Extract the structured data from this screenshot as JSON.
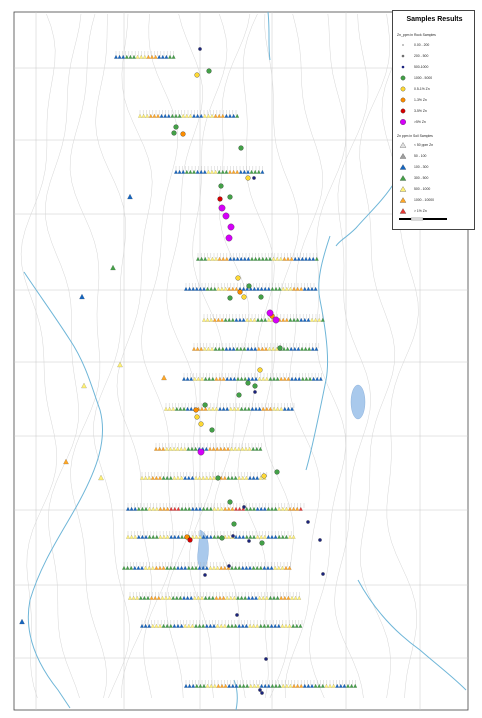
{
  "legend": {
    "title": "Samples Results",
    "rock_heading": "Zn_ppm in Rock Samples",
    "rock_classes": [
      {
        "label": "0.00 - 200",
        "shape": "dot-small",
        "color": "#9a9a9a"
      },
      {
        "label": "200 - 500",
        "shape": "dot",
        "color": "#6f6f6f"
      },
      {
        "label": "500-1000",
        "shape": "dot",
        "color": "#1a237e"
      },
      {
        "label": "1000 - 5000",
        "shape": "circle",
        "color": "#43a047"
      },
      {
        "label": "0.5-1% Zn",
        "shape": "circle",
        "color": "#fdd835"
      },
      {
        "label": "1-3% Zn",
        "shape": "circle",
        "color": "#fb8c00"
      },
      {
        "label": "3-5% Zn",
        "shape": "circle",
        "color": "#d50000"
      },
      {
        "label": ">5% Zn",
        "shape": "circle-large",
        "color": "#d500f9"
      }
    ],
    "soil_heading": "Zn ppm in Soil Samples",
    "soil_classes": [
      {
        "label": "< 50 ppm Zn",
        "shape": "triangle",
        "color": "#e0e0e0"
      },
      {
        "label": "50 - 100",
        "shape": "triangle",
        "color": "#9e9e9e"
      },
      {
        "label": "100 - 300",
        "shape": "triangle",
        "color": "#1565c0"
      },
      {
        "label": "300 - 500",
        "shape": "triangle",
        "color": "#43a047"
      },
      {
        "label": "500 - 1000",
        "shape": "triangle",
        "color": "#fff176"
      },
      {
        "label": "1000 - 10000",
        "shape": "triangle",
        "color": "#ffa726"
      },
      {
        "label": "> 1% Zn",
        "shape": "triangle",
        "color": "#e53935"
      }
    ]
  },
  "colors": {
    "stream": "#6fb6d8",
    "contour": "#d6d6d6",
    "grid": "#c8c8c8",
    "lake": "#a9c9ec",
    "frame": "#444444"
  },
  "soil_lines": [
    {
      "pattern": [
        "#1565c0",
        "#43a047",
        "#fff176",
        "#ffa726",
        "#1565c0",
        "#43a047",
        "#fff176"
      ]
    },
    {
      "pattern": [
        "#fff176",
        "#ffa726",
        "#1565c0",
        "#43a047",
        "#fff176",
        "#1565c0"
      ]
    },
    {
      "pattern": [
        "#1565c0",
        "#43a047",
        "#1565c0",
        "#fff176",
        "#43a047",
        "#ffa726"
      ]
    },
    {
      "pattern": [
        "#43a047",
        "#fff176",
        "#ffa726",
        "#1565c0",
        "#1565c0",
        "#43a047"
      ]
    },
    {
      "pattern": [
        "#1565c0",
        "#1565c0",
        "#43a047",
        "#fff176",
        "#ffa726",
        "#1565c0"
      ]
    },
    {
      "pattern": [
        "#fff176",
        "#ffa726",
        "#43a047",
        "#1565c0",
        "#fff176",
        "#43a047"
      ]
    },
    {
      "pattern": [
        "#ffa726",
        "#fff176",
        "#43a047",
        "#1565c0",
        "#43a047",
        "#1565c0"
      ]
    },
    {
      "pattern": [
        "#1565c0",
        "#fff176",
        "#43a047",
        "#ffa726",
        "#1565c0",
        "#43a047"
      ]
    },
    {
      "pattern": [
        "#fff176",
        "#43a047",
        "#1565c0",
        "#ffa726",
        "#fff176",
        "#1565c0"
      ]
    },
    {
      "pattern": [
        "#ffa726",
        "#fff176",
        "#fff176",
        "#43a047",
        "#1565c0",
        "#ffa726"
      ]
    },
    {
      "pattern": [
        "#fff176",
        "#ffa726",
        "#43a047",
        "#fff176",
        "#1565c0",
        "#fff176"
      ]
    },
    {
      "pattern": [
        "#1565c0",
        "#43a047",
        "#fff176",
        "#ffa726",
        "#e53935",
        "#43a047"
      ]
    },
    {
      "pattern": [
        "#fff176",
        "#1565c0",
        "#43a047",
        "#fff176",
        "#1565c0",
        "#43a047"
      ]
    },
    {
      "pattern": [
        "#43a047",
        "#1565c0",
        "#fff176",
        "#ffa726",
        "#43a047",
        "#1565c0"
      ]
    },
    {
      "pattern": [
        "#fff176",
        "#43a047",
        "#ffa726",
        "#fff176",
        "#43a047",
        "#1565c0"
      ]
    },
    {
      "pattern": [
        "#1565c0",
        "#fff176",
        "#43a047",
        "#1565c0",
        "#fff176",
        "#43a047"
      ]
    }
  ],
  "rock_points": [
    {
      "c": "#1a237e"
    },
    {
      "c": "#43a047"
    },
    {
      "c": "#fdd835"
    },
    {
      "c": "#43a047"
    },
    {
      "c": "#fb8c00"
    },
    {
      "c": "#43a047"
    },
    {
      "c": "#43a047"
    },
    {
      "c": "#fdd835"
    },
    {
      "c": "#1a237e"
    },
    {
      "c": "#43a047"
    },
    {
      "c": "#43a047"
    },
    {
      "c": "#d500f9"
    },
    {
      "c": "#d500f9"
    },
    {
      "c": "#d500f9"
    },
    {
      "c": "#d500f9"
    },
    {
      "c": "#d50000"
    },
    {
      "c": "#fdd835"
    },
    {
      "c": "#43a047"
    },
    {
      "c": "#fb8c00"
    },
    {
      "c": "#43a047"
    },
    {
      "c": "#fdd835"
    },
    {
      "c": "#43a047"
    },
    {
      "c": "#fb8c00"
    },
    {
      "c": "#d500f9"
    },
    {
      "c": "#d500f9"
    },
    {
      "c": "#43a047"
    },
    {
      "c": "#fdd835"
    },
    {
      "c": "#43a047"
    },
    {
      "c": "#43a047"
    },
    {
      "c": "#1a237e"
    },
    {
      "c": "#43a047"
    },
    {
      "c": "#fdd835"
    },
    {
      "c": "#43a047"
    },
    {
      "c": "#fb8c00"
    },
    {
      "c": "#fdd835"
    },
    {
      "c": "#43a047"
    },
    {
      "c": "#d500f9"
    },
    {
      "c": "#43a047"
    },
    {
      "c": "#fdd835"
    },
    {
      "c": "#43a047"
    },
    {
      "c": "#43a047"
    },
    {
      "c": "#1a237e"
    },
    {
      "c": "#43a047"
    },
    {
      "c": "#43a047"
    },
    {
      "c": "#fb8c00"
    },
    {
      "c": "#d50000"
    },
    {
      "c": "#1a237e"
    },
    {
      "c": "#1a237e"
    },
    {
      "c": "#43a047"
    },
    {
      "c": "#1a237e"
    },
    {
      "c": "#1a237e"
    },
    {
      "c": "#1a237e"
    },
    {
      "c": "#1a237e"
    },
    {
      "c": "#1a237e"
    },
    {
      "c": "#1a237e"
    },
    {
      "c": "#1a237e"
    },
    {
      "c": "#1a237e"
    },
    {
      "c": "#1a237e"
    }
  ]
}
